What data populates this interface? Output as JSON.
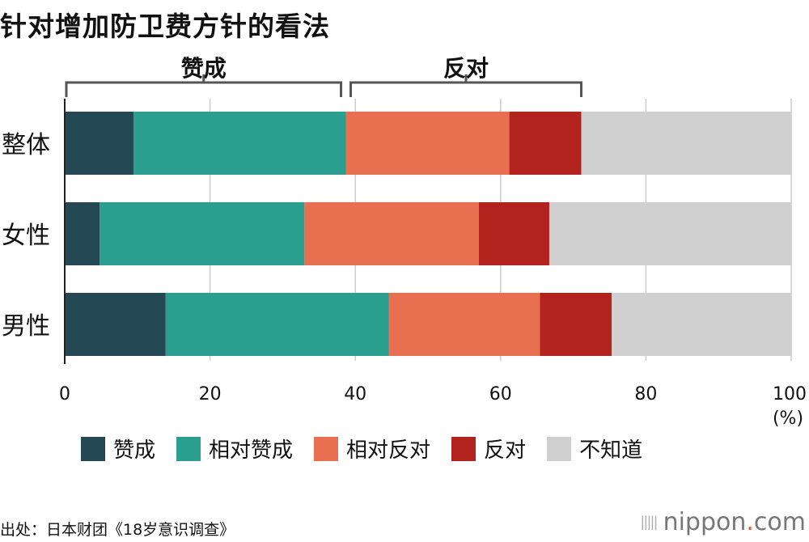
{
  "title": "针对增加防卫费方针的看法",
  "source": "出处：日本财团《18岁意识调查》",
  "logo": {
    "name": "nippon",
    "dot": ".",
    "suffix": "com"
  },
  "chart_data": {
    "type": "bar",
    "orientation": "horizontal",
    "stacked": true,
    "categories": [
      "整体",
      "女性",
      "男性"
    ],
    "series": [
      {
        "name": "赞成",
        "color": "#254855",
        "values": [
          9.5,
          4.8,
          13.9
        ]
      },
      {
        "name": "相对赞成",
        "color": "#2a9f90",
        "values": [
          29.2,
          28.2,
          30.7
        ]
      },
      {
        "name": "相对反对",
        "color": "#e86f50",
        "values": [
          22.5,
          24.0,
          20.8
        ]
      },
      {
        "name": "反对",
        "color": "#b3231e",
        "values": [
          9.9,
          9.7,
          9.9
        ]
      },
      {
        "name": "不知道",
        "color": "#cfcfcf",
        "values": [
          28.9,
          33.3,
          24.7
        ]
      }
    ],
    "xlim": [
      0,
      100
    ],
    "xticks": [
      0,
      20,
      40,
      60,
      80,
      100
    ],
    "xunit": "(%)",
    "grid": true,
    "groups": [
      {
        "label": "赞成",
        "from": 0,
        "to": 38.7
      },
      {
        "label": "反对",
        "from": 38.7,
        "to": 71.1
      }
    ],
    "legend_position": "bottom"
  }
}
